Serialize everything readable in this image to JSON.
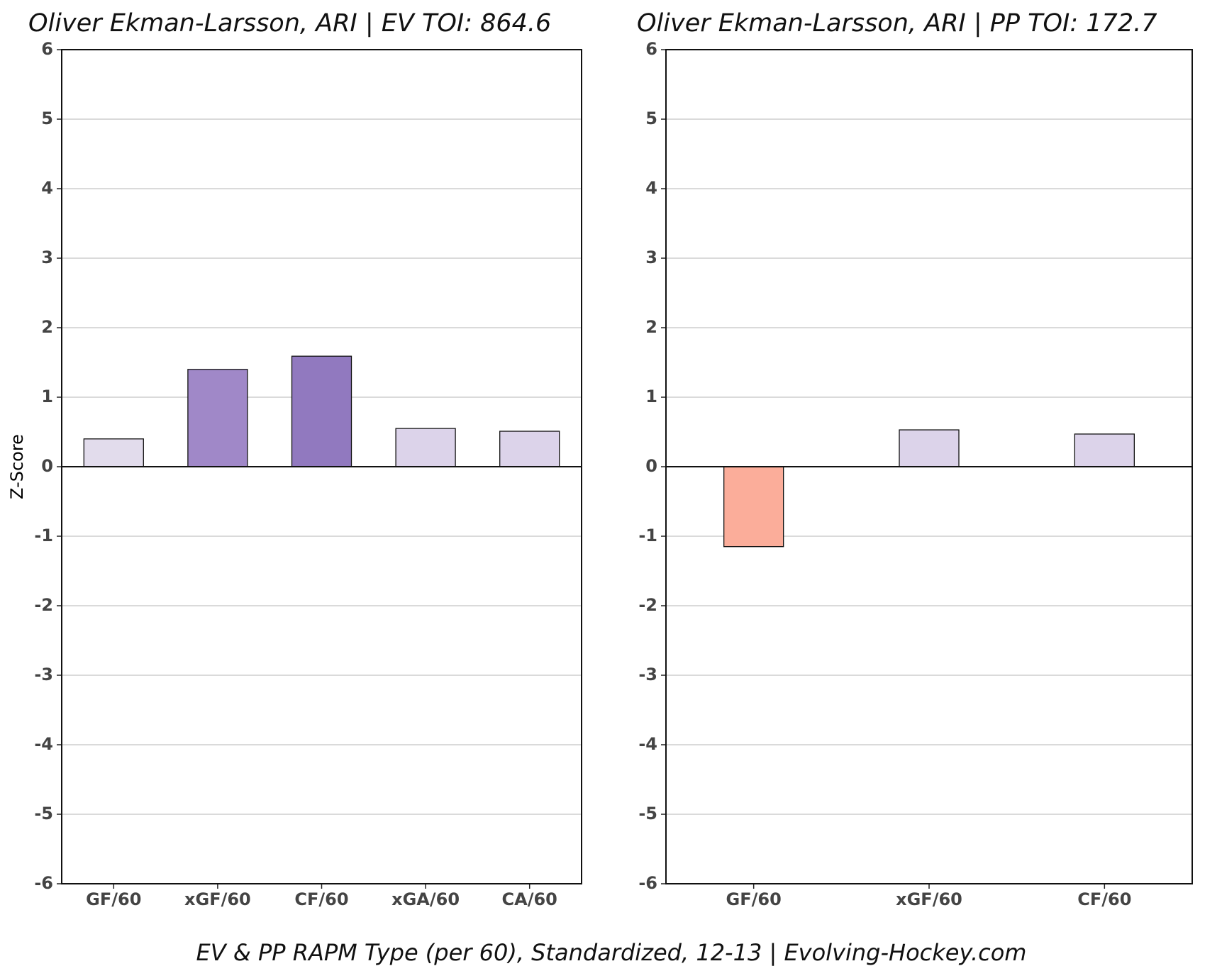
{
  "chart_data": [
    {
      "type": "bar",
      "title": "Oliver Ekman-Larsson, ARI  |  EV TOI: 864.6",
      "ylabel": "Z-Score",
      "categories": [
        "GF/60",
        "xGF/60",
        "CF/60",
        "xGA/60",
        "CA/60"
      ],
      "values": [
        0.4,
        1.4,
        1.59,
        0.55,
        0.51
      ],
      "colors": [
        "#e2dcec",
        "#a088c8",
        "#9179bf",
        "#dcd3ea",
        "#dcd3ea"
      ],
      "ylim": [
        -6,
        6
      ],
      "yticks": [
        -6,
        -5,
        -4,
        -3,
        -2,
        -1,
        0,
        1,
        2,
        3,
        4,
        5,
        6
      ],
      "grid": true
    },
    {
      "type": "bar",
      "title": "Oliver Ekman-Larsson, ARI  |  PP TOI: 172.7",
      "categories": [
        "GF/60",
        "xGF/60",
        "CF/60"
      ],
      "values": [
        -1.15,
        0.53,
        0.47
      ],
      "colors": [
        "#fbad9a",
        "#dcd3ea",
        "#dcd3ea"
      ],
      "ylim": [
        -6,
        6
      ],
      "yticks": [
        -6,
        -5,
        -4,
        -3,
        -2,
        -1,
        0,
        1,
        2,
        3,
        4,
        5,
        6
      ],
      "grid": true
    }
  ],
  "caption": "EV & PP RAPM Type (per 60), Standardized, 12-13    |    Evolving-Hockey.com"
}
